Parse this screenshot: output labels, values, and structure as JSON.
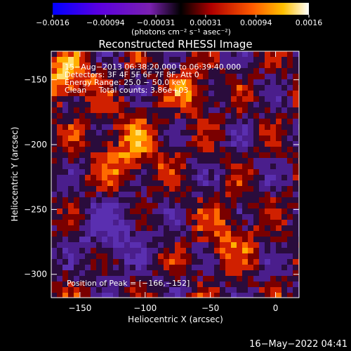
{
  "chart_data": {
    "type": "heatmap",
    "title": "Reconstructed RHESSI Image",
    "xlabel": "Heliocentric X (arcsec)",
    "ylabel": "Heliocentric Y (arcsec)",
    "xlim": [
      -172,
      18
    ],
    "ylim": [
      -318,
      -128
    ],
    "x_ticks": [
      -150,
      -100,
      -50,
      0
    ],
    "y_ticks": [
      -150,
      -200,
      -250,
      -300
    ],
    "x_tick_labels": [
      "−150",
      "−100",
      "−50",
      "0"
    ],
    "y_tick_labels": [
      "−150",
      "−200",
      "−250",
      "−300"
    ],
    "colorbar": {
      "range": [
        -0.0016,
        0.0016
      ],
      "ticks": [
        -0.0016,
        -0.00094,
        -0.00031,
        0.00031,
        0.00094,
        0.0016
      ],
      "tick_labels": [
        "−0.0016",
        "−0.00094",
        "−0.00031",
        "0.00031",
        "0.00094",
        "0.0016"
      ],
      "unit_label": "(photons cm⁻² s⁻¹ asec⁻²)"
    },
    "annotations": {
      "time_range": "15−Aug−2013 06:38:20.000 to 06:39:40.000",
      "detectors": "Detectors: 3F 4F 5F 6F 7F 8F, Att 0",
      "energy": "Energy Range: 25.0 − 50.0 keV",
      "clean": "Clean     Total counts: 3.86e+03",
      "peak": "Position of Peak = [−166,−152]"
    },
    "peak_position": [
      -166,
      -152
    ],
    "grid": false
  },
  "footer": {
    "timestamp": "16−May−2022 04:41"
  }
}
